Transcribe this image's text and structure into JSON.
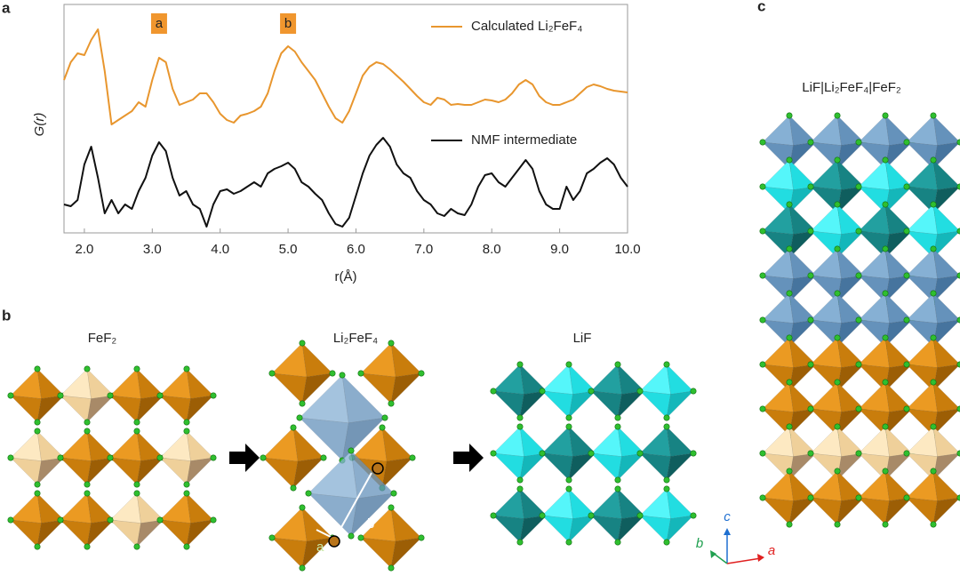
{
  "chart_data": {
    "type": "line",
    "y_label": "G(r)",
    "x_label": "r(Å)",
    "x": [
      1.7,
      1.8,
      1.9,
      2.0,
      2.1,
      2.2,
      2.3,
      2.4,
      2.5,
      2.6,
      2.7,
      2.8,
      2.9,
      3.0,
      3.1,
      3.2,
      3.3,
      3.4,
      3.5,
      3.6,
      3.7,
      3.8,
      3.9,
      4.0,
      4.1,
      4.2,
      4.3,
      4.4,
      4.5,
      4.6,
      4.7,
      4.8,
      4.9,
      5.0,
      5.1,
      5.2,
      5.3,
      5.4,
      5.5,
      5.6,
      5.7,
      5.8,
      5.9,
      6.0,
      6.1,
      6.2,
      6.3,
      6.4,
      6.5,
      6.6,
      6.7,
      6.8,
      6.9,
      7.0,
      7.1,
      7.2,
      7.3,
      7.4,
      7.5,
      7.6,
      7.7,
      7.8,
      7.9,
      8.0,
      8.1,
      8.2,
      8.3,
      8.4,
      8.5,
      8.6,
      8.7,
      8.8,
      8.9,
      9.0,
      9.1,
      9.2,
      9.3,
      9.4,
      9.5,
      9.6,
      9.7,
      9.8,
      9.9,
      10.0
    ],
    "series": [
      {
        "name": "Calculated Li₂FeF₄",
        "color": "#e8962e",
        "values": [
          172,
          192,
          202,
          200,
          217,
          229,
          182,
          122,
          127,
          132,
          137,
          147,
          142,
          172,
          197,
          192,
          162,
          144,
          147,
          150,
          157,
          157,
          147,
          134,
          127,
          124,
          132,
          134,
          137,
          142,
          157,
          182,
          202,
          210,
          204,
          192,
          182,
          172,
          157,
          142,
          129,
          124,
          137,
          157,
          177,
          187,
          192,
          190,
          184,
          177,
          170,
          162,
          154,
          147,
          144,
          152,
          150,
          144,
          145,
          144,
          144,
          147,
          150,
          149,
          147,
          150,
          157,
          167,
          172,
          167,
          154,
          147,
          144,
          144,
          147,
          150,
          157,
          164,
          167,
          165,
          162,
          160,
          159,
          158
        ]
      },
      {
        "name": "NMF intermediate",
        "color": "#111111",
        "values": [
          32,
          30,
          37,
          77,
          97,
          62,
          22,
          37,
          22,
          32,
          27,
          47,
          62,
          87,
          102,
          92,
          62,
          42,
          47,
          32,
          27,
          7,
          32,
          47,
          49,
          44,
          47,
          52,
          57,
          52,
          67,
          72,
          75,
          79,
          72,
          57,
          52,
          44,
          37,
          22,
          10,
          7,
          17,
          42,
          67,
          87,
          99,
          107,
          97,
          77,
          67,
          62,
          47,
          37,
          32,
          22,
          19,
          27,
          22,
          20,
          32,
          52,
          65,
          67,
          57,
          52,
          62,
          72,
          82,
          72,
          47,
          32,
          27,
          27,
          52,
          37,
          47,
          67,
          72,
          79,
          84,
          77,
          62,
          52
        ]
      }
    ],
    "annotations": [
      {
        "text": "a",
        "x": 3.1
      },
      {
        "text": "b",
        "x": 5.0
      }
    ],
    "annotation_color": "#f0962e",
    "xlim": [
      1.7,
      10.0
    ],
    "ylim": [
      0,
      257
    ],
    "xticks": [
      {
        "value": 2,
        "label": "2.0"
      },
      {
        "value": 3,
        "label": "3.0"
      },
      {
        "value": 4,
        "label": "4.0"
      },
      {
        "value": 5,
        "label": "5.0"
      },
      {
        "value": 6,
        "label": "6.0"
      },
      {
        "value": 7,
        "label": "7.0"
      },
      {
        "value": 8,
        "label": "8.0"
      },
      {
        "value": 9,
        "label": "9.0"
      },
      {
        "value": 10,
        "label": "10.0"
      }
    ]
  },
  "panel_labels": [
    "a",
    "b",
    "c"
  ],
  "structures": {
    "labels": [
      "FeF₂",
      "Li₂FeF₄",
      "LiF",
      "LiF|Li₂FeF₄|FeF₂"
    ],
    "vector_labels": [
      "a",
      "b"
    ],
    "axes_labels": [
      "c",
      "b",
      "a"
    ]
  }
}
